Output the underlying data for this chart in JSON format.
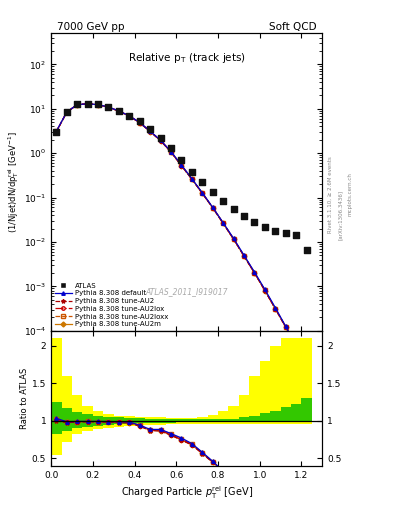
{
  "title_left": "7000 GeV pp",
  "title_right": "Soft QCD",
  "plot_title": "Relative p$_\\mathrm{T}$ (track jets)",
  "xlabel": "Charged Particle $p_\\mathrm{T}^\\mathrm{rel}$ [GeV]",
  "ylabel_main": "(1/Njet)dN/dp$_{\\mathrm{T}}^{\\mathrm{rel}}$ [GeV$^{-1}$]",
  "ylabel_ratio": "Ratio to ATLAS",
  "watermark": "ATLAS_2011_I919017",
  "right_text1": "Rivet 3.1.10, ≥ 2.6M events",
  "right_text2": "[arXiv:1306.3436]",
  "right_text3": "mcplots.cern.ch",
  "xlim": [
    0.0,
    1.3
  ],
  "ylim_main": [
    0.0001,
    500
  ],
  "ylim_ratio": [
    0.4,
    2.2
  ],
  "atlas_x": [
    0.025,
    0.075,
    0.125,
    0.175,
    0.225,
    0.275,
    0.325,
    0.375,
    0.425,
    0.475,
    0.525,
    0.575,
    0.625,
    0.675,
    0.725,
    0.775,
    0.825,
    0.875,
    0.925,
    0.975,
    1.025,
    1.075,
    1.125,
    1.175,
    1.225
  ],
  "atlas_y": [
    3.0,
    8.5,
    12.5,
    13.0,
    12.5,
    11.0,
    9.0,
    7.0,
    5.2,
    3.5,
    2.2,
    1.3,
    0.7,
    0.38,
    0.22,
    0.13,
    0.082,
    0.055,
    0.038,
    0.028,
    0.022,
    0.018,
    0.016,
    0.014,
    0.0065
  ],
  "default_y": [
    3.1,
    8.4,
    12.4,
    12.9,
    12.4,
    10.9,
    8.9,
    6.9,
    4.9,
    3.1,
    1.95,
    1.08,
    0.54,
    0.265,
    0.128,
    0.06,
    0.027,
    0.012,
    0.005,
    0.0021,
    0.00085,
    0.00033,
    0.000125,
    4.5e-05,
    1.5e-05
  ],
  "au2_y": [
    3.0,
    8.3,
    12.3,
    12.85,
    12.3,
    10.8,
    8.8,
    6.8,
    4.82,
    3.05,
    1.9,
    1.05,
    0.52,
    0.258,
    0.124,
    0.058,
    0.026,
    0.0115,
    0.0048,
    0.002,
    0.0008,
    0.00031,
    0.00012,
    4.3e-05,
    1.4e-05
  ],
  "au2lox_y": [
    3.05,
    8.35,
    12.35,
    12.88,
    12.35,
    10.85,
    8.85,
    6.85,
    4.85,
    3.07,
    1.92,
    1.06,
    0.525,
    0.26,
    0.125,
    0.059,
    0.0265,
    0.01155,
    0.00482,
    0.00201,
    0.000808,
    0.000312,
    0.000121,
    4.35e-05,
    1.43e-05
  ],
  "au2loxx_y": [
    3.08,
    8.38,
    12.38,
    12.9,
    12.38,
    10.88,
    8.88,
    6.88,
    4.88,
    3.09,
    1.94,
    1.07,
    0.53,
    0.262,
    0.126,
    0.0595,
    0.0268,
    0.01162,
    0.00485,
    0.00202,
    0.000812,
    0.000315,
    0.000122,
    4.38e-05,
    1.44e-05
  ],
  "au2m_y": [
    3.02,
    8.32,
    12.32,
    12.87,
    12.32,
    10.82,
    8.82,
    6.82,
    4.84,
    3.06,
    1.91,
    1.055,
    0.522,
    0.259,
    0.1245,
    0.0585,
    0.0262,
    0.01148,
    0.00479,
    0.002,
    0.000804,
    0.000311,
    0.000121,
    4.32e-05,
    1.42e-05
  ],
  "band_x_lo": [
    0.0,
    0.05,
    0.1,
    0.15,
    0.2,
    0.25,
    0.3,
    0.35,
    0.4,
    0.45,
    0.5,
    0.55,
    0.6,
    0.65,
    0.7,
    0.75,
    0.8,
    0.85,
    0.9,
    0.95,
    1.0,
    1.05,
    1.1,
    1.15,
    1.2
  ],
  "band_x_hi": [
    0.05,
    0.1,
    0.15,
    0.2,
    0.25,
    0.3,
    0.35,
    0.4,
    0.45,
    0.5,
    0.55,
    0.6,
    0.65,
    0.7,
    0.75,
    0.8,
    0.85,
    0.9,
    0.95,
    1.0,
    1.05,
    1.1,
    1.15,
    1.2,
    1.25
  ],
  "band_yellow_lo": [
    0.55,
    0.72,
    0.82,
    0.87,
    0.89,
    0.91,
    0.92,
    0.93,
    0.94,
    0.945,
    0.95,
    0.955,
    0.96,
    0.96,
    0.96,
    0.96,
    0.96,
    0.96,
    0.96,
    0.96,
    0.96,
    0.96,
    0.96,
    0.96,
    0.96
  ],
  "band_yellow_hi": [
    2.1,
    1.6,
    1.35,
    1.2,
    1.13,
    1.09,
    1.07,
    1.06,
    1.055,
    1.05,
    1.045,
    1.04,
    1.04,
    1.04,
    1.05,
    1.08,
    1.13,
    1.2,
    1.35,
    1.6,
    1.8,
    2.0,
    2.1,
    2.1,
    2.1
  ],
  "band_green_lo": [
    0.82,
    0.87,
    0.9,
    0.92,
    0.935,
    0.945,
    0.955,
    0.962,
    0.968,
    0.972,
    0.975,
    0.977,
    0.979,
    0.98,
    0.98,
    0.98,
    0.98,
    0.98,
    0.98,
    0.98,
    0.98,
    0.98,
    0.98,
    0.98,
    0.98
  ],
  "band_green_hi": [
    1.25,
    1.17,
    1.12,
    1.09,
    1.07,
    1.055,
    1.045,
    1.038,
    1.032,
    1.028,
    1.025,
    1.023,
    1.021,
    1.02,
    1.02,
    1.02,
    1.022,
    1.03,
    1.045,
    1.07,
    1.1,
    1.13,
    1.18,
    1.22,
    1.3
  ],
  "color_default": "#0000cc",
  "color_au2": "#aa0000",
  "color_au2lox": "#cc0000",
  "color_au2loxx": "#cc5500",
  "color_au2m": "#cc7700",
  "color_yellow": "#ffff00",
  "color_green": "#00bb00",
  "color_atlas": "#111111",
  "lw": 0.9
}
